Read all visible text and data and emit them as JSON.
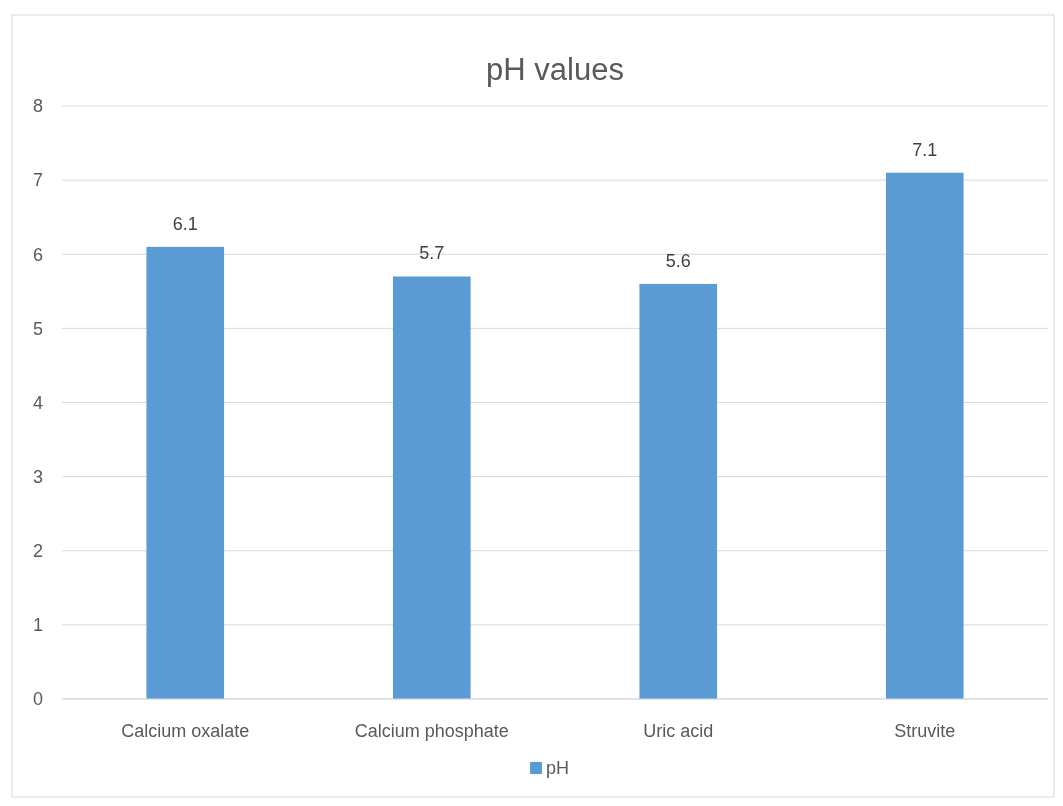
{
  "chart_data": {
    "type": "bar",
    "title": "pH values",
    "categories": [
      "Calcium oxalate",
      "Calcium phosphate",
      "Uric acid",
      "Struvite"
    ],
    "series": [
      {
        "name": "pH",
        "color": "#5b9bd5",
        "values": [
          6.1,
          5.7,
          5.6,
          7.1
        ]
      }
    ],
    "ylim": [
      0,
      8
    ],
    "yticks": [
      0,
      1,
      2,
      3,
      4,
      5,
      6,
      7,
      8
    ],
    "grid": "y",
    "legend": "bottom",
    "data_labels": true
  }
}
